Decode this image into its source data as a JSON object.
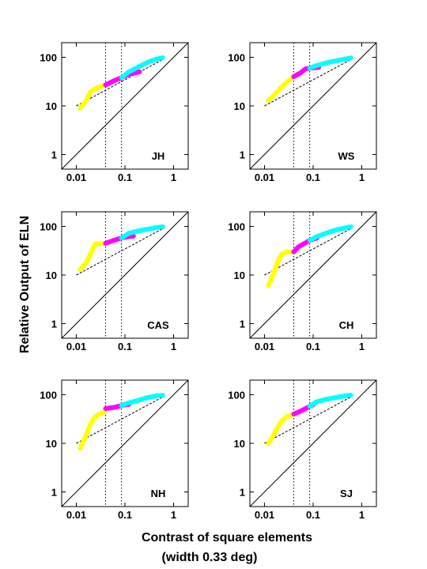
{
  "figure": {
    "ylabel": "Relative Output of ELN",
    "xlabel_line1": "Contrast of square elements",
    "xlabel_line2": "(width 0.33 deg)"
  },
  "colors": {
    "segment_low": "#ffff00",
    "segment_mid": "#ff00ff",
    "segment_high": "#00ffff",
    "axes": "#000000"
  },
  "chart_data": [
    {
      "type": "line",
      "label": "JH",
      "xscale": "log",
      "yscale": "log",
      "xlim": [
        0.005,
        2
      ],
      "ylim": [
        0.5,
        200
      ],
      "xticks": [
        "0.01",
        "0.1",
        "1"
      ],
      "yticks": [
        "1",
        "10",
        "100"
      ],
      "vlines": [
        0.04,
        0.085
      ],
      "reference_lines": {
        "identity": [
          [
            0.005,
            0.5
          ],
          [
            2,
            200
          ]
        ],
        "dashed": [
          [
            0.01,
            10
          ],
          [
            0.6,
            90
          ]
        ]
      },
      "segments": [
        {
          "color": "segment_low",
          "points": [
            [
              0.012,
              9
            ],
            [
              0.016,
              13
            ],
            [
              0.02,
              20
            ],
            [
              0.028,
              24
            ],
            [
              0.04,
              27
            ]
          ]
        },
        {
          "color": "segment_mid",
          "points": [
            [
              0.04,
              27
            ],
            [
              0.06,
              33
            ],
            [
              0.085,
              38
            ],
            [
              0.12,
              45
            ],
            [
              0.2,
              50
            ]
          ]
        },
        {
          "color": "segment_high",
          "points": [
            [
              0.085,
              38
            ],
            [
              0.12,
              50
            ],
            [
              0.2,
              65
            ],
            [
              0.3,
              80
            ],
            [
              0.45,
              92
            ],
            [
              0.6,
              98
            ]
          ]
        }
      ]
    },
    {
      "type": "line",
      "label": "WS",
      "xscale": "log",
      "yscale": "log",
      "xlim": [
        0.005,
        2
      ],
      "ylim": [
        0.5,
        200
      ],
      "xticks": [
        "0.01",
        "0.1",
        "1"
      ],
      "yticks": [
        "1",
        "10",
        "100"
      ],
      "vlines": [
        0.04,
        0.085
      ],
      "reference_lines": {
        "identity": [
          [
            0.005,
            0.5
          ],
          [
            2,
            200
          ]
        ],
        "dashed": [
          [
            0.01,
            10
          ],
          [
            0.6,
            90
          ]
        ]
      },
      "segments": [
        {
          "color": "segment_low",
          "points": [
            [
              0.012,
              13
            ],
            [
              0.016,
              17
            ],
            [
              0.022,
              24
            ],
            [
              0.03,
              32
            ],
            [
              0.04,
              40
            ]
          ]
        },
        {
          "color": "segment_mid",
          "points": [
            [
              0.04,
              40
            ],
            [
              0.055,
              48
            ],
            [
              0.07,
              58
            ],
            [
              0.085,
              60
            ],
            [
              0.13,
              62
            ]
          ]
        },
        {
          "color": "segment_high",
          "points": [
            [
              0.085,
              60
            ],
            [
              0.12,
              68
            ],
            [
              0.2,
              78
            ],
            [
              0.3,
              85
            ],
            [
              0.45,
              92
            ],
            [
              0.6,
              97
            ]
          ]
        }
      ]
    },
    {
      "type": "line",
      "label": "CAS",
      "xscale": "log",
      "yscale": "log",
      "xlim": [
        0.005,
        2
      ],
      "ylim": [
        0.5,
        200
      ],
      "xticks": [
        "0.01",
        "0.1",
        "1"
      ],
      "yticks": [
        "1",
        "10",
        "100"
      ],
      "vlines": [
        0.04,
        0.085
      ],
      "reference_lines": {
        "identity": [
          [
            0.005,
            0.5
          ],
          [
            2,
            200
          ]
        ],
        "dashed": [
          [
            0.01,
            10
          ],
          [
            0.6,
            90
          ]
        ]
      },
      "segments": [
        {
          "color": "segment_low",
          "points": [
            [
              0.012,
              13
            ],
            [
              0.016,
              18
            ],
            [
              0.02,
              28
            ],
            [
              0.024,
              43
            ],
            [
              0.04,
              45
            ]
          ]
        },
        {
          "color": "segment_mid",
          "points": [
            [
              0.04,
              45
            ],
            [
              0.06,
              52
            ],
            [
              0.085,
              58
            ],
            [
              0.12,
              62
            ],
            [
              0.15,
              63
            ]
          ]
        },
        {
          "color": "segment_high",
          "points": [
            [
              0.085,
              58
            ],
            [
              0.12,
              72
            ],
            [
              0.2,
              82
            ],
            [
              0.3,
              88
            ],
            [
              0.45,
              95
            ],
            [
              0.6,
              98
            ]
          ]
        }
      ]
    },
    {
      "type": "line",
      "label": "CH",
      "xscale": "log",
      "yscale": "log",
      "xlim": [
        0.005,
        2
      ],
      "ylim": [
        0.5,
        200
      ],
      "xticks": [
        "0.01",
        "0.1",
        "1"
      ],
      "yticks": [
        "1",
        "10",
        "100"
      ],
      "vlines": [
        0.04,
        0.085
      ],
      "reference_lines": {
        "identity": [
          [
            0.005,
            0.5
          ],
          [
            2,
            200
          ]
        ],
        "dashed": [
          [
            0.01,
            10
          ],
          [
            0.6,
            90
          ]
        ]
      },
      "segments": [
        {
          "color": "segment_low",
          "points": [
            [
              0.012,
              6
            ],
            [
              0.015,
              10
            ],
            [
              0.018,
              17
            ],
            [
              0.022,
              26
            ],
            [
              0.028,
              30
            ],
            [
              0.04,
              30
            ]
          ]
        },
        {
          "color": "segment_mid",
          "points": [
            [
              0.04,
              30
            ],
            [
              0.05,
              38
            ],
            [
              0.065,
              44
            ],
            [
              0.085,
              52
            ],
            [
              0.12,
              58
            ]
          ]
        },
        {
          "color": "segment_high",
          "points": [
            [
              0.085,
              52
            ],
            [
              0.12,
              62
            ],
            [
              0.2,
              75
            ],
            [
              0.3,
              85
            ],
            [
              0.45,
              93
            ],
            [
              0.6,
              98
            ]
          ]
        }
      ]
    },
    {
      "type": "line",
      "label": "NH",
      "xscale": "log",
      "yscale": "log",
      "xlim": [
        0.005,
        2
      ],
      "ylim": [
        0.5,
        200
      ],
      "xticks": [
        "0.01",
        "0.1",
        "1"
      ],
      "yticks": [
        "1",
        "10",
        "100"
      ],
      "vlines": [
        0.04,
        0.085
      ],
      "reference_lines": {
        "identity": [
          [
            0.005,
            0.5
          ],
          [
            2,
            200
          ]
        ],
        "dashed": [
          [
            0.01,
            10
          ],
          [
            0.6,
            90
          ]
        ]
      },
      "segments": [
        {
          "color": "segment_low",
          "points": [
            [
              0.012,
              8
            ],
            [
              0.016,
              15
            ],
            [
              0.02,
              26
            ],
            [
              0.025,
              36
            ],
            [
              0.032,
              42
            ],
            [
              0.04,
              45
            ]
          ]
        },
        {
          "color": "segment_mid",
          "points": [
            [
              0.04,
              52
            ],
            [
              0.06,
              55
            ],
            [
              0.085,
              60
            ],
            [
              0.12,
              63
            ]
          ]
        },
        {
          "color": "segment_high",
          "points": [
            [
              0.085,
              60
            ],
            [
              0.12,
              68
            ],
            [
              0.2,
              78
            ],
            [
              0.3,
              88
            ],
            [
              0.45,
              95
            ],
            [
              0.6,
              97
            ]
          ]
        }
      ]
    },
    {
      "type": "line",
      "label": "SJ",
      "xscale": "log",
      "yscale": "log",
      "xlim": [
        0.005,
        2
      ],
      "ylim": [
        0.5,
        200
      ],
      "xticks": [
        "0.01",
        "0.1",
        "1"
      ],
      "yticks": [
        "1",
        "10",
        "100"
      ],
      "vlines": [
        0.04,
        0.085
      ],
      "reference_lines": {
        "identity": [
          [
            0.005,
            0.5
          ],
          [
            2,
            200
          ]
        ],
        "dashed": [
          [
            0.01,
            10
          ],
          [
            0.6,
            90
          ]
        ]
      },
      "segments": [
        {
          "color": "segment_low",
          "points": [
            [
              0.012,
              10
            ],
            [
              0.015,
              14
            ],
            [
              0.018,
              20
            ],
            [
              0.022,
              28
            ],
            [
              0.028,
              35
            ],
            [
              0.04,
              40
            ]
          ]
        },
        {
          "color": "segment_mid",
          "points": [
            [
              0.04,
              40
            ],
            [
              0.055,
              46
            ],
            [
              0.07,
              52
            ],
            [
              0.085,
              58
            ],
            [
              0.1,
              62
            ]
          ]
        },
        {
          "color": "segment_high",
          "points": [
            [
              0.085,
              58
            ],
            [
              0.12,
              72
            ],
            [
              0.2,
              82
            ],
            [
              0.3,
              88
            ],
            [
              0.45,
              95
            ],
            [
              0.6,
              98
            ]
          ]
        }
      ]
    }
  ]
}
